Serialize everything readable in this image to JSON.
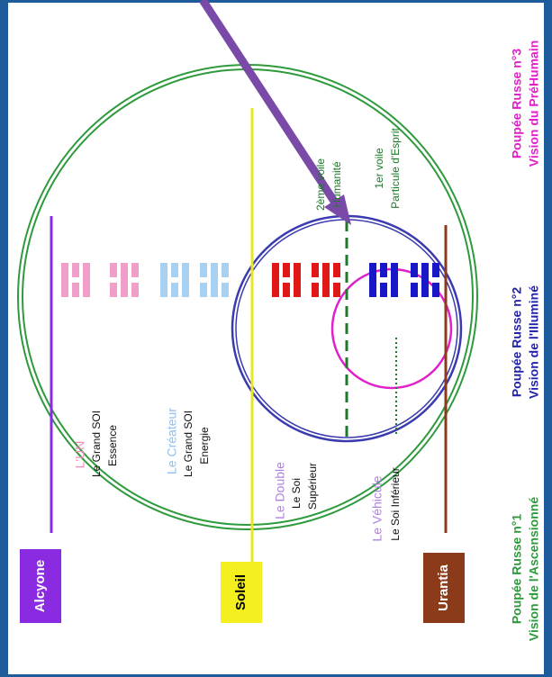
{
  "places": {
    "alcyone": "Alcyone",
    "soleil": "Soleil",
    "urantia": "Urantia"
  },
  "levels": [
    {
      "name": "L'UN",
      "lines": [
        "Le Grand SOI",
        "Essence"
      ]
    },
    {
      "name": "Le Créateur",
      "lines": [
        "Le Grand SOI",
        "Energie"
      ]
    },
    {
      "name": "Le Double",
      "lines": [
        "Le Soi",
        "Supérieur"
      ]
    },
    {
      "name": "Le Véhicule",
      "lines": [
        "Le Soi Inférieur"
      ]
    }
  ],
  "veils": [
    {
      "lines": [
        "2ème voile",
        "Humanité"
      ]
    },
    {
      "lines": [
        "1er voile",
        "Particule d'Esprit"
      ]
    }
  ],
  "dolls": [
    {
      "lines": [
        "Poupée Russe n°1",
        "Vision de l'Ascensionné"
      ]
    },
    {
      "lines": [
        "Poupée Russe n°2",
        "Vision de l'Illuminé"
      ]
    },
    {
      "lines": [
        "Poupée Russe n°3",
        "Vision du PréHumain"
      ]
    }
  ]
}
